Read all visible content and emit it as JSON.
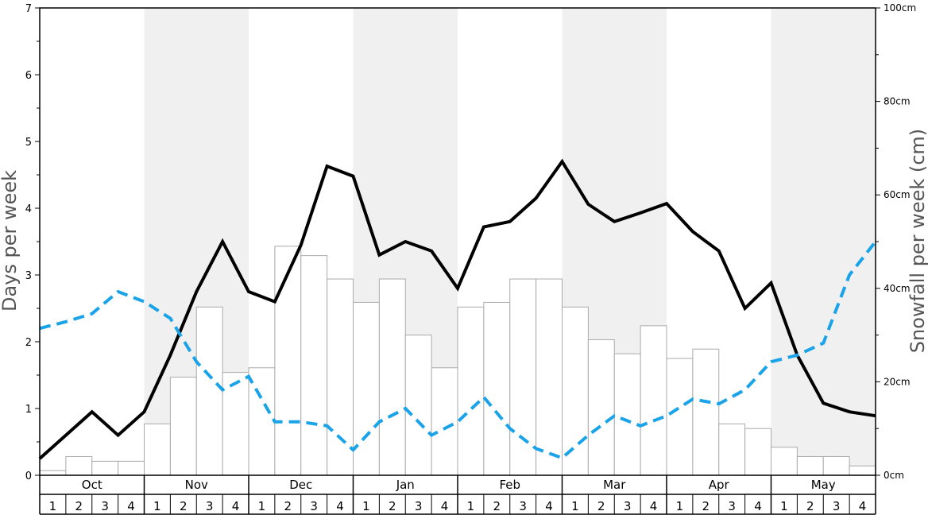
{
  "chart_data": {
    "type": "bar",
    "left_axis": {
      "title": "Days per week",
      "ylim": [
        0,
        7
      ],
      "ticks": [
        "0",
        "1",
        "2",
        "3",
        "4",
        "5",
        "6",
        "7"
      ]
    },
    "right_axis": {
      "title": "Snowfall per week (cm)",
      "ylim": [
        0,
        100
      ],
      "ticks": [
        "0cm",
        "20cm",
        "40cm",
        "60cm",
        "80cm",
        "100cm"
      ]
    },
    "months": [
      "Oct",
      "Nov",
      "Dec",
      "Jan",
      "Feb",
      "Mar",
      "Apr",
      "May"
    ],
    "weeks": [
      "1",
      "2",
      "3",
      "4"
    ],
    "shaded_months": [
      "Nov",
      "Jan",
      "Mar",
      "May"
    ],
    "grid": false,
    "legend": "none",
    "colors": {
      "solid_line": "#000000",
      "dashed_line": "#1aa3e8",
      "bar_fill": "#ffffff",
      "bar_stroke": "#aaaaaa",
      "shade": "#f0f0f0"
    },
    "series": [
      {
        "style": "bar",
        "axis": "right",
        "values": [
          1,
          4,
          3,
          3,
          11,
          21,
          36,
          22,
          23,
          49,
          47,
          42,
          37,
          42,
          30,
          23,
          36,
          37,
          42,
          42,
          36,
          29,
          26,
          32,
          25,
          27,
          11,
          10,
          6,
          4,
          4,
          2
        ]
      },
      {
        "style": "solid-line",
        "axis": "left",
        "values": [
          0.25,
          0.6,
          0.95,
          0.6,
          0.95,
          1.8,
          2.75,
          3.5,
          2.75,
          2.6,
          3.45,
          4.63,
          4.48,
          3.3,
          3.5,
          3.36,
          2.8,
          3.72,
          3.8,
          4.15,
          4.7,
          4.06,
          3.8,
          3.93,
          4.07,
          3.65,
          3.36,
          2.5,
          2.88,
          1.8,
          1.08,
          0.95,
          0.89
        ]
      },
      {
        "style": "dashed-line",
        "axis": "left",
        "values": [
          2.2,
          2.3,
          2.42,
          2.75,
          2.6,
          2.35,
          1.7,
          1.28,
          1.48,
          0.8,
          0.8,
          0.74,
          0.38,
          0.8,
          1.0,
          0.6,
          0.8,
          1.17,
          0.7,
          0.4,
          0.26,
          0.6,
          0.89,
          0.74,
          0.89,
          1.14,
          1.07,
          1.28,
          1.7,
          1.8,
          1.98,
          3.0,
          3.5
        ]
      }
    ]
  }
}
